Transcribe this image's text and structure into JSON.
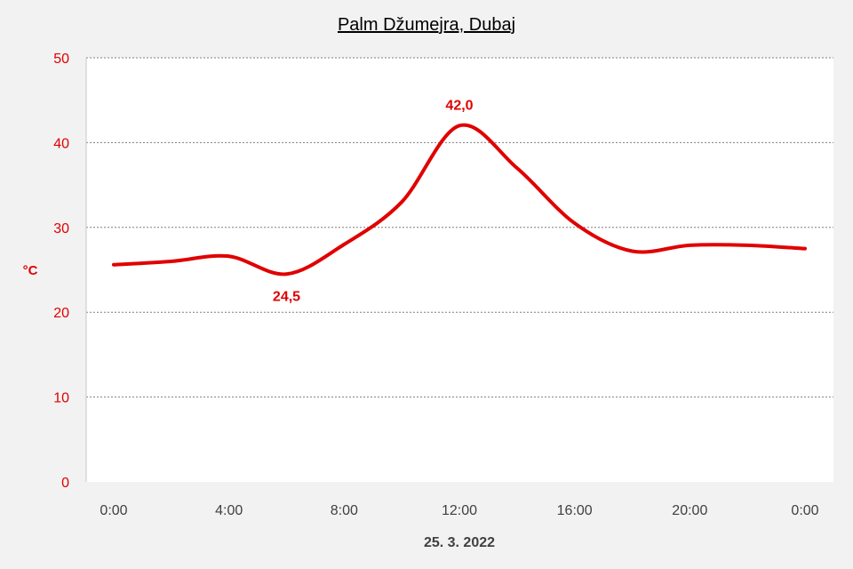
{
  "chart_data": {
    "type": "line",
    "title": "Palm Džumejra, Dubaj",
    "xlabel": "25. 3. 2022",
    "ylabel": "°C",
    "ylim": [
      0,
      50
    ],
    "yticks": [
      "0",
      "10",
      "20",
      "30",
      "40",
      "50"
    ],
    "xticks": [
      "0:00",
      "4:00",
      "8:00",
      "12:00",
      "16:00",
      "20:00",
      "0:00"
    ],
    "grid": true,
    "line_color": "#e00000",
    "series": [
      {
        "x": [
          "0:00",
          "2:00",
          "4:00",
          "6:00",
          "8:00",
          "10:00",
          "12:00",
          "14:00",
          "16:00",
          "18:00",
          "20:00",
          "22:00",
          "0:00"
        ],
        "values": [
          25.6,
          26.0,
          26.6,
          24.5,
          28.0,
          33.0,
          42.0,
          37.0,
          30.5,
          27.2,
          27.9,
          27.9,
          27.5
        ]
      }
    ],
    "data_labels": [
      {
        "x": "6:00",
        "value": 24.5,
        "text": "24,5",
        "position": "below"
      },
      {
        "x": "12:00",
        "value": 42.0,
        "text": "42,0",
        "position": "above"
      }
    ]
  }
}
